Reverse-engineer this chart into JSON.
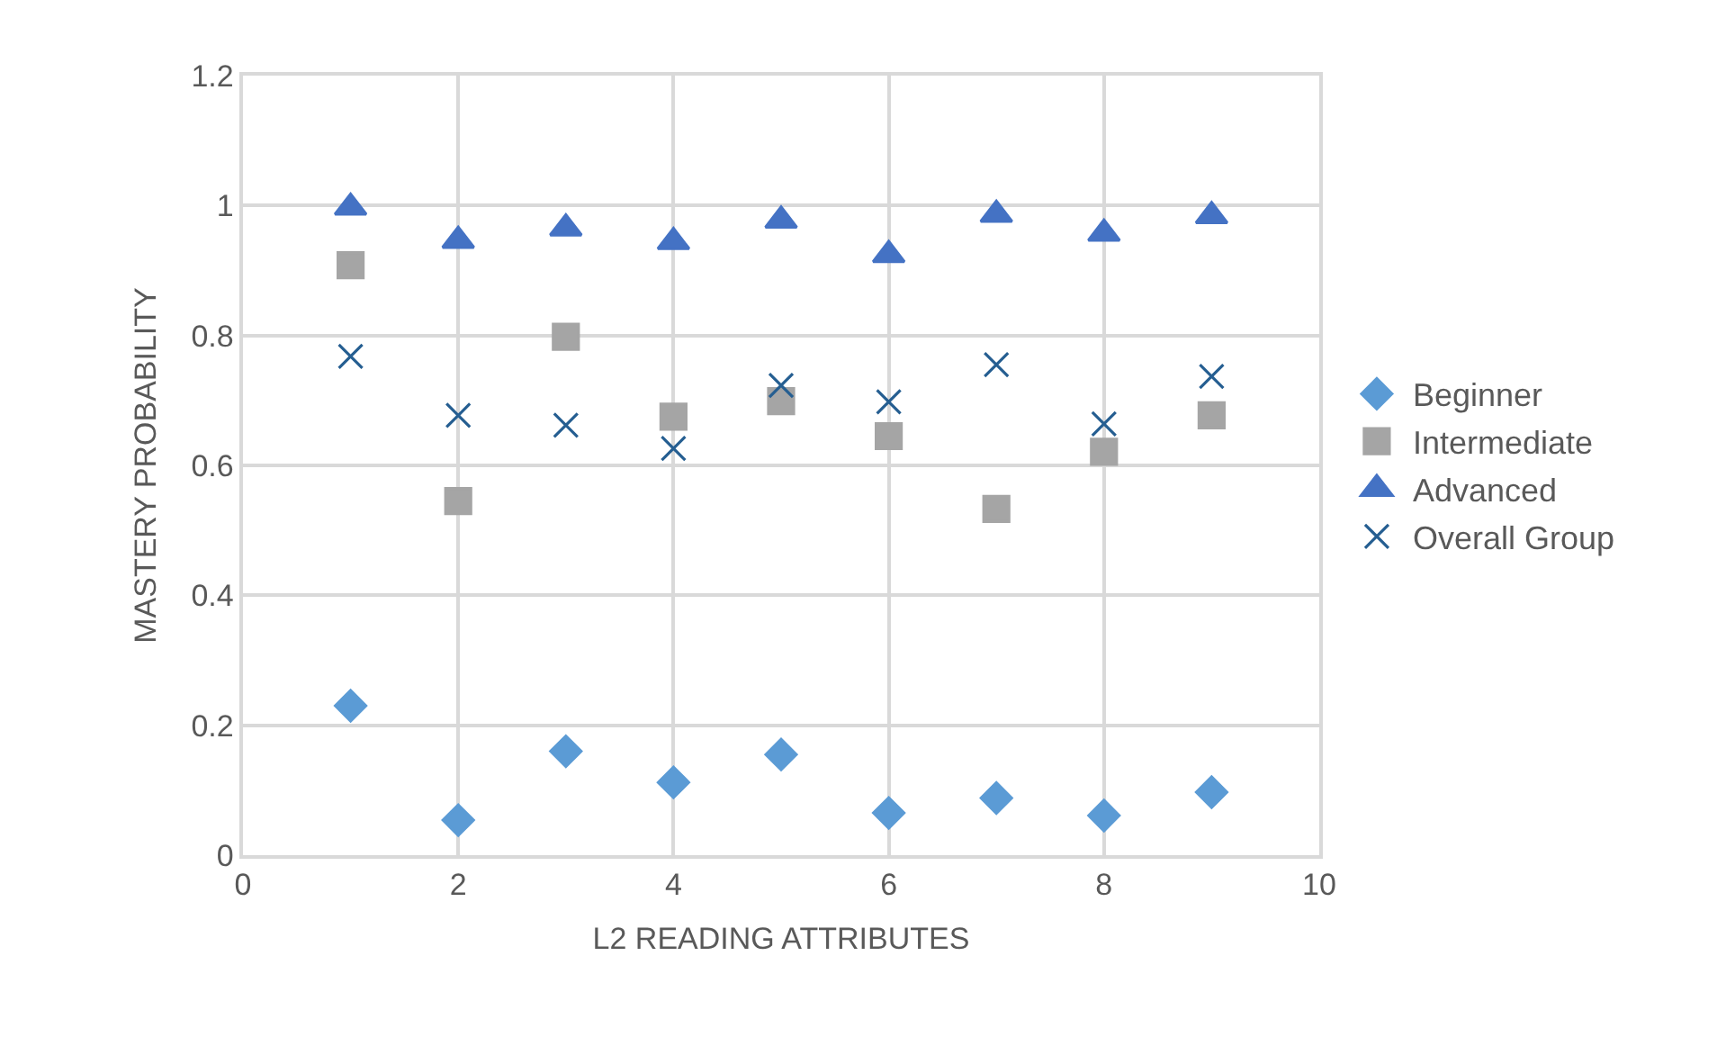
{
  "chart_data": {
    "type": "scatter",
    "xlabel": "L2 READING ATTRIBUTES",
    "ylabel": "MASTERY PROBABILITY",
    "x": [
      1,
      2,
      3,
      4,
      5,
      6,
      7,
      8,
      9
    ],
    "xlim": [
      0,
      10
    ],
    "xticks": [
      0,
      2,
      4,
      6,
      8,
      10
    ],
    "ylim": [
      0,
      1.2
    ],
    "yticks": [
      0,
      0.2,
      0.4,
      0.6,
      0.8,
      1,
      1.2
    ],
    "grid": true,
    "legend": "right",
    "series": [
      {
        "name": "Beginner",
        "color": "#5b9bd5",
        "marker": "diamond",
        "values": [
          0.23,
          0.054,
          0.16,
          0.112,
          0.155,
          0.065,
          0.088,
          0.061,
          0.097
        ]
      },
      {
        "name": "Intermediate",
        "color": "#a5a5a5",
        "marker": "square",
        "values": [
          0.908,
          0.545,
          0.798,
          0.675,
          0.699,
          0.645,
          0.533,
          0.621,
          0.677
        ]
      },
      {
        "name": "Advanced",
        "color": "#4472c4",
        "marker": "triangle",
        "values": [
          0.997,
          0.946,
          0.965,
          0.944,
          0.977,
          0.924,
          0.986,
          0.957,
          0.984
        ]
      },
      {
        "name": "Overall Group",
        "color": "#255e91",
        "marker": "cross",
        "values": [
          0.768,
          0.677,
          0.662,
          0.626,
          0.723,
          0.698,
          0.755,
          0.664,
          0.737
        ]
      }
    ]
  }
}
